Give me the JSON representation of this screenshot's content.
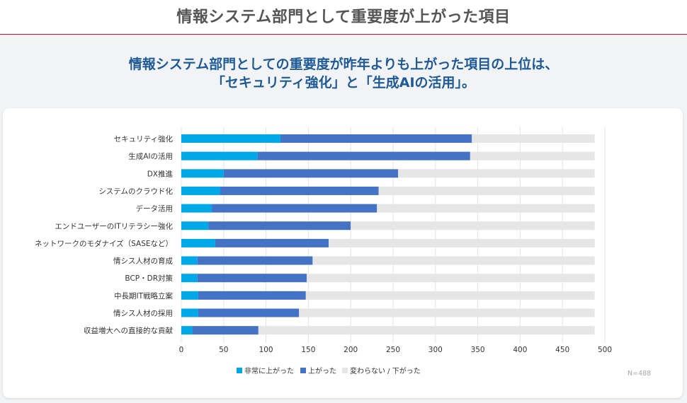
{
  "page": {
    "title": "情報システム部門として重要度が上がった項目",
    "headline_line1": "情報システム部門としての重要度が昨年よりも上がった項目の上位は、",
    "headline_line2": "「セキュリティ強化」と「生成AIの活用」。"
  },
  "chart_data": {
    "type": "bar",
    "orientation": "horizontal",
    "stacked": true,
    "title": "",
    "xlabel": "",
    "ylabel": "",
    "xlim": [
      0,
      500
    ],
    "xticks": [
      0,
      50,
      100,
      150,
      200,
      250,
      300,
      350,
      400,
      450,
      500
    ],
    "grid": true,
    "legend_position": "bottom",
    "note": "N=488",
    "categories": [
      "セキュリティ強化",
      "生成AIの活用",
      "DX推進",
      "システムのクラウド化",
      "データ活用",
      "エンドユーザーのITリテラシー強化",
      "ネットワークのモダナイズ（SASEなど）",
      "情シス人材の育成",
      "BCP・DR対策",
      "中長期IT戦略立案",
      "情シス人材の採用",
      "収益増大への直接的な貢献"
    ],
    "series": [
      {
        "name": "非常に上がった",
        "color": "#00a8e8",
        "values": [
          117,
          90,
          50,
          46,
          36,
          32,
          40,
          19,
          19,
          20,
          20,
          13
        ]
      },
      {
        "name": "上がった",
        "color": "#4472c4",
        "values": [
          226,
          251,
          206,
          187,
          195,
          168,
          134,
          136,
          129,
          127,
          119,
          78
        ]
      },
      {
        "name": "変わらない / 下がった",
        "color": "#e6e6e6",
        "values": [
          145,
          147,
          232,
          255,
          257,
          288,
          314,
          333,
          340,
          341,
          349,
          397
        ]
      }
    ]
  }
}
